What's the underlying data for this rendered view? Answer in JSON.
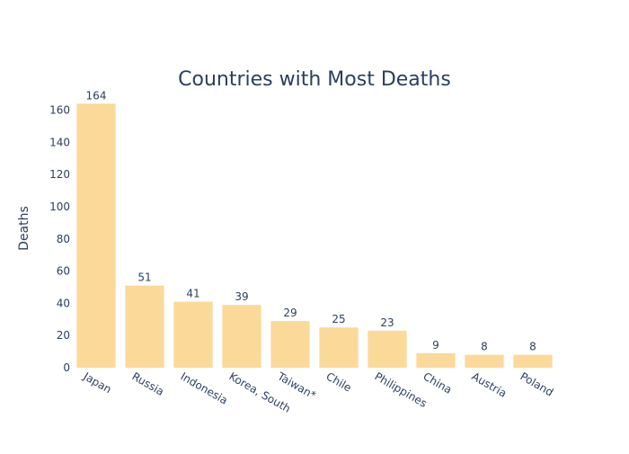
{
  "chart_data": {
    "type": "bar",
    "title": "Countries with Most Deaths",
    "xlabel": "",
    "ylabel": "Deaths",
    "categories": [
      "Japan",
      "Russia",
      "Indonesia",
      "Korea, South",
      "Taiwan*",
      "Chile",
      "Philippines",
      "China",
      "Austria",
      "Poland"
    ],
    "values": [
      164,
      51,
      41,
      39,
      29,
      25,
      23,
      9,
      8,
      8
    ],
    "data_labels": [
      "164",
      "51",
      "41",
      "39",
      "29",
      "25",
      "23",
      "9",
      "8",
      "8"
    ],
    "ylim": [
      0,
      172.6
    ],
    "yticks": [
      0,
      20,
      40,
      60,
      80,
      100,
      120,
      140,
      160
    ],
    "grid": false,
    "legend": "none",
    "bar_color": "#fbd999",
    "text_color": "#2a3f5f"
  }
}
